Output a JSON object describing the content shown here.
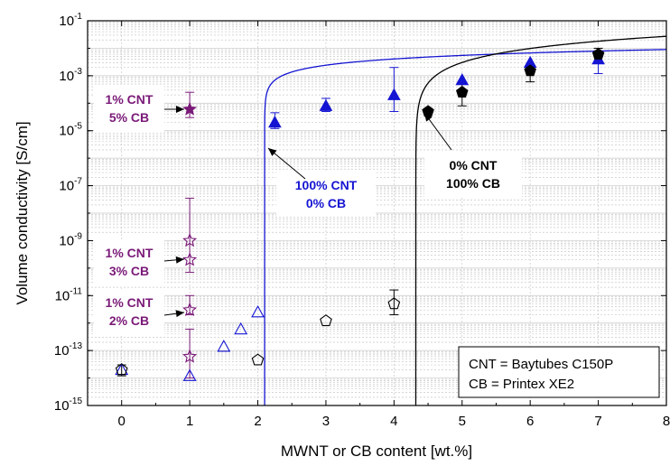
{
  "chart_data": {
    "type": "scatter",
    "xlabel": "MWNT or CB content [wt.%]",
    "ylabel": "Volume conductivity [S/cm]",
    "xlim": [
      -0.5,
      8
    ],
    "ylim_log10": [
      -15,
      -1
    ],
    "y_scale": "log",
    "x_ticks": [
      "0",
      "1",
      "2",
      "3",
      "4",
      "5",
      "6",
      "7",
      "8"
    ],
    "y_tick_exponents": [
      "-15",
      "-13",
      "-11",
      "-9",
      "-7",
      "-5",
      "-3",
      "-1"
    ],
    "y_tick_base": "10",
    "grid": true,
    "colors": {
      "blue": "#1414d2",
      "black": "#000000",
      "purple": "#7a1a78"
    },
    "series": [
      {
        "marker": "triangle-filled",
        "color": "#1414d2",
        "points": [
          {
            "x": 2.25,
            "y": 2e-05,
            "err": [
              1.2e-05,
              4.5e-05
            ]
          },
          {
            "x": 3,
            "y": 8e-05,
            "err": [
              5e-05,
              0.00015
            ]
          },
          {
            "x": 4,
            "y": 0.0002,
            "err": [
              5e-05,
              0.002
            ]
          },
          {
            "x": 5,
            "y": 0.0007
          },
          {
            "x": 6,
            "y": 0.003
          },
          {
            "x": 7,
            "y": 0.004,
            "err": [
              0.0012,
              0.008
            ]
          }
        ]
      },
      {
        "marker": "pentagon-filled",
        "color": "#000000",
        "points": [
          {
            "x": 4.5,
            "y": 5e-05
          },
          {
            "x": 5,
            "y": 0.00025,
            "err": [
              8e-05,
              0.0005
            ]
          },
          {
            "x": 6,
            "y": 0.0015,
            "err": [
              0.0006,
              0.0025
            ]
          },
          {
            "x": 7,
            "y": 0.006,
            "err": [
              0.003,
              0.01
            ]
          }
        ]
      },
      {
        "marker": "triangle-open",
        "color": "#1414d2",
        "points": [
          {
            "x": 0,
            "y": 2e-14
          },
          {
            "x": 1,
            "y": 1.2e-14
          },
          {
            "x": 1.5,
            "y": 1.4e-13
          },
          {
            "x": 1.75,
            "y": 6e-13
          },
          {
            "x": 2,
            "y": 2.5e-12
          }
        ]
      },
      {
        "marker": "pentagon-open",
        "color": "#000000",
        "points": [
          {
            "x": 0,
            "y": 2e-14,
            "err": [
              1.2e-14,
              3e-14
            ]
          },
          {
            "x": 2,
            "y": 4.5e-14
          },
          {
            "x": 3,
            "y": 1.2e-12
          },
          {
            "x": 4,
            "y": 5e-12,
            "err": [
              2e-12,
              1.6e-11
            ]
          }
        ]
      },
      {
        "marker": "star-filled",
        "color": "#7a1a78",
        "points": [
          {
            "x": 1,
            "y": 6e-05,
            "err": [
              3e-05,
              0.00025
            ]
          }
        ]
      },
      {
        "marker": "star-open",
        "color": "#7a1a78",
        "points": [
          {
            "x": 1,
            "y": 1e-09,
            "err": [
              7e-11,
              3.5e-08
            ]
          },
          {
            "x": 1,
            "y": 2e-10
          },
          {
            "x": 1,
            "y": 3e-12,
            "err": [
              2e-12,
              1e-11
            ]
          },
          {
            "x": 1,
            "y": 6e-14,
            "err": [
              1e-14,
              6e-13
            ]
          }
        ]
      }
    ],
    "fit_curves": [
      {
        "color": "#1414d2",
        "threshold_x": 2.1,
        "A": 0.0026,
        "t": 0.7,
        "x_end": 8
      },
      {
        "color": "#000000",
        "threshold_x": 4.32,
        "A": 0.005,
        "t": 1.3,
        "x_end": 8
      }
    ],
    "annotations": [
      {
        "lines": [
          "1% CNT",
          "5% CB"
        ],
        "color": "#7a1a78"
      },
      {
        "lines": [
          "1% CNT",
          "3% CB"
        ],
        "color": "#7a1a78"
      },
      {
        "lines": [
          "1% CNT",
          "2% CB"
        ],
        "color": "#7a1a78"
      },
      {
        "lines": [
          "100% CNT",
          "0% CB"
        ],
        "color": "#1414d2"
      },
      {
        "lines": [
          "0% CNT",
          "100% CB"
        ],
        "color": "#000000"
      }
    ],
    "legend_box": [
      "CNT = Baytubes C150P",
      "CB = Printex XE2"
    ],
    "legend_placement": "bottom-right"
  }
}
